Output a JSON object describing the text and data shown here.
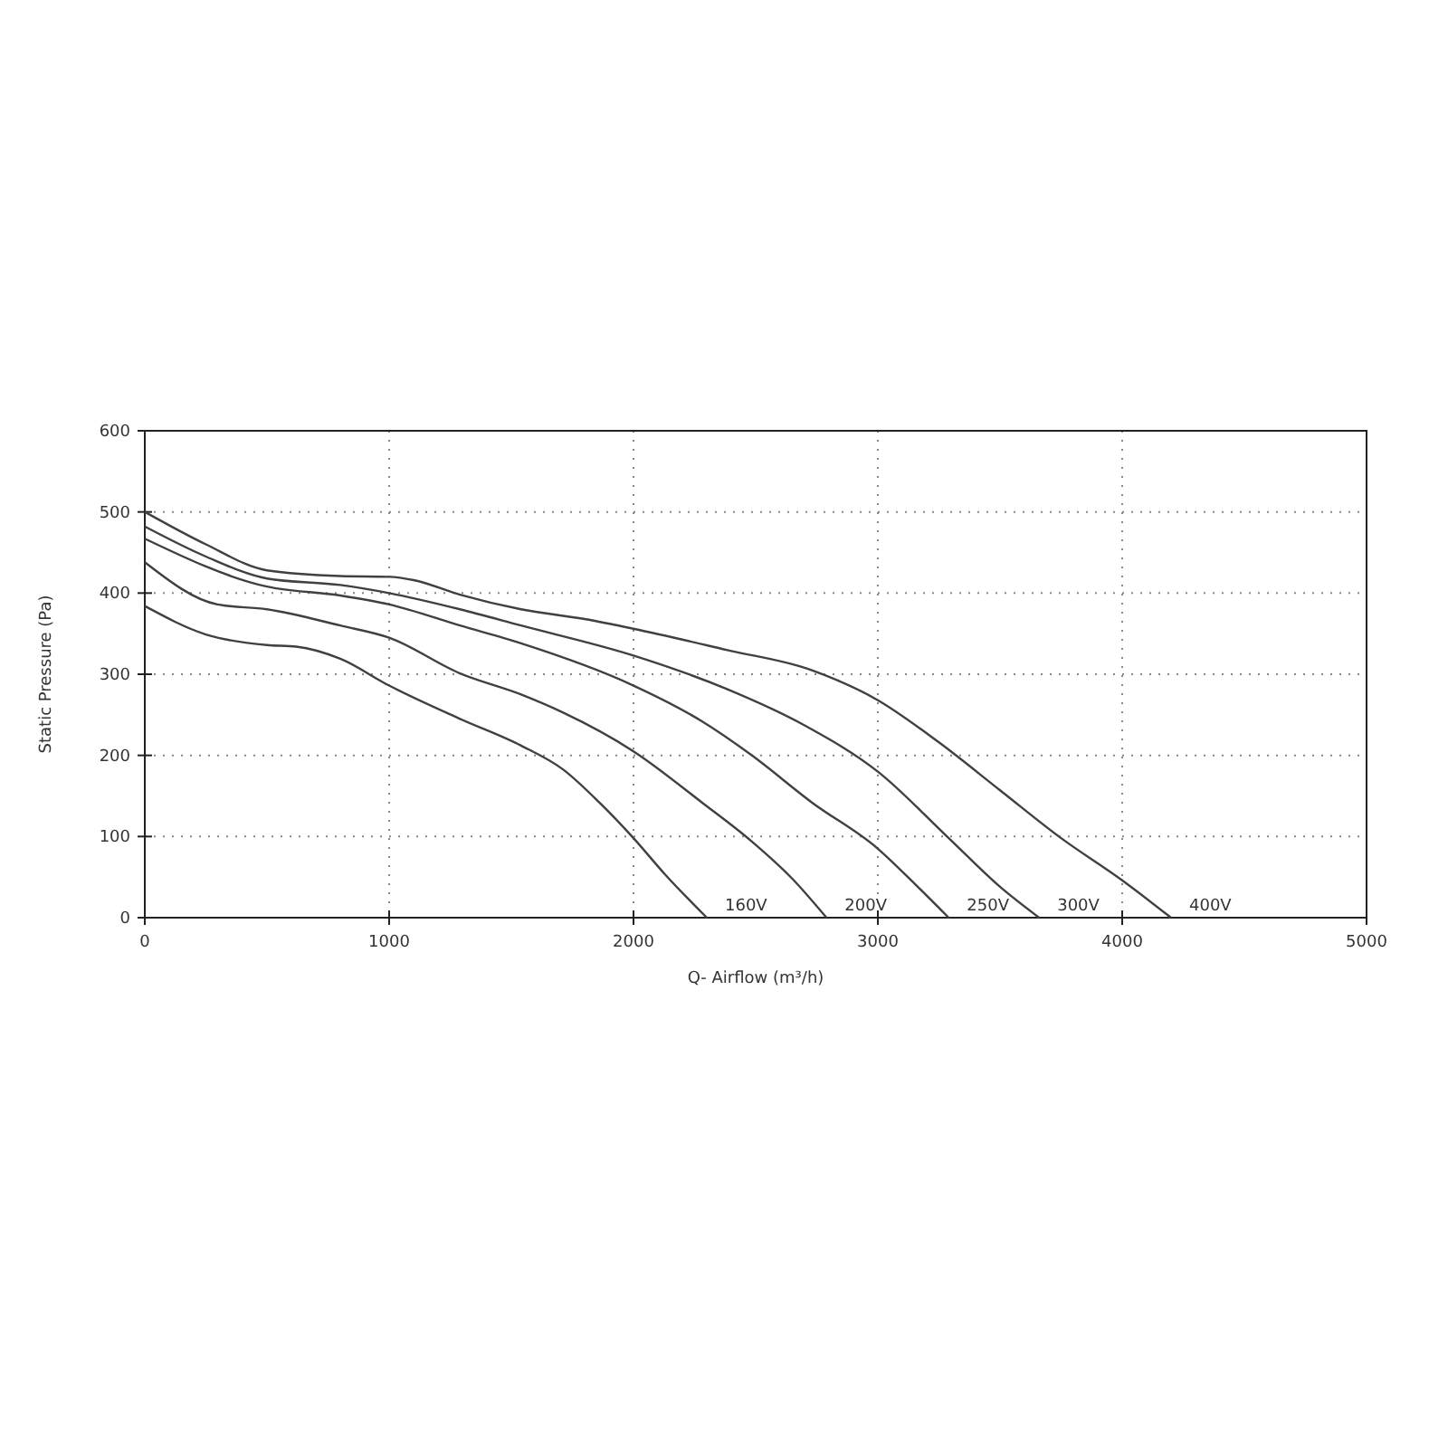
{
  "chart_data": {
    "type": "line",
    "xlabel": "Q- Airflow (m³/h)",
    "ylabel": "Static Pressure (Pa)",
    "xlim": [
      0,
      5000
    ],
    "ylim": [
      0,
      600
    ],
    "xticks": [
      0,
      1000,
      2000,
      3000,
      4000,
      5000
    ],
    "yticks": [
      0,
      100,
      200,
      300,
      400,
      500,
      600
    ],
    "grid": true,
    "marker": "none",
    "line_style": "solid",
    "series": [
      {
        "name": "160V",
        "color": "#404040",
        "x": [
          0,
          250,
          500,
          620,
          800,
          1000,
          1290,
          1540,
          1710,
          1860,
          2000,
          2130,
          2300
        ],
        "values": [
          384,
          349,
          336,
          334,
          319,
          286,
          245,
          212,
          183,
          142,
          98,
          53,
          0
        ]
      },
      {
        "name": "200V",
        "color": "#404040",
        "x": [
          0,
          297,
          500,
          800,
          1000,
          1290,
          1540,
          1710,
          2000,
          2280,
          2480,
          2650,
          2790
        ],
        "values": [
          438,
          386,
          380,
          360,
          345,
          301,
          275,
          253,
          205,
          142,
          95,
          48,
          0
        ]
      },
      {
        "name": "250V",
        "color": "#404040",
        "x": [
          0,
          500,
          800,
          1000,
          1290,
          1540,
          2000,
          2280,
          2480,
          2730,
          3000,
          3150,
          3290
        ],
        "values": [
          467,
          408,
          397,
          386,
          360,
          338,
          286,
          242,
          201,
          142,
          85,
          42,
          0
        ]
      },
      {
        "name": "300V",
        "color": "#404040",
        "x": [
          0,
          250,
          500,
          800,
          1000,
          1290,
          1540,
          2000,
          2380,
          2700,
          3000,
          3290,
          3500,
          3660
        ],
        "values": [
          482,
          445,
          418,
          410,
          400,
          380,
          360,
          323,
          282,
          237,
          180,
          98,
          38,
          0
        ]
      },
      {
        "name": "400V",
        "color": "#404040",
        "x": [
          0,
          250,
          500,
          800,
          1000,
          1100,
          1290,
          1540,
          1800,
          2000,
          2380,
          2730,
          3000,
          3250,
          3500,
          3750,
          4000,
          4200
        ],
        "values": [
          500,
          460,
          428,
          421,
          420,
          416,
          398,
          380,
          368,
          356,
          330,
          305,
          268,
          216,
          157,
          98,
          46,
          0
        ]
      }
    ]
  }
}
